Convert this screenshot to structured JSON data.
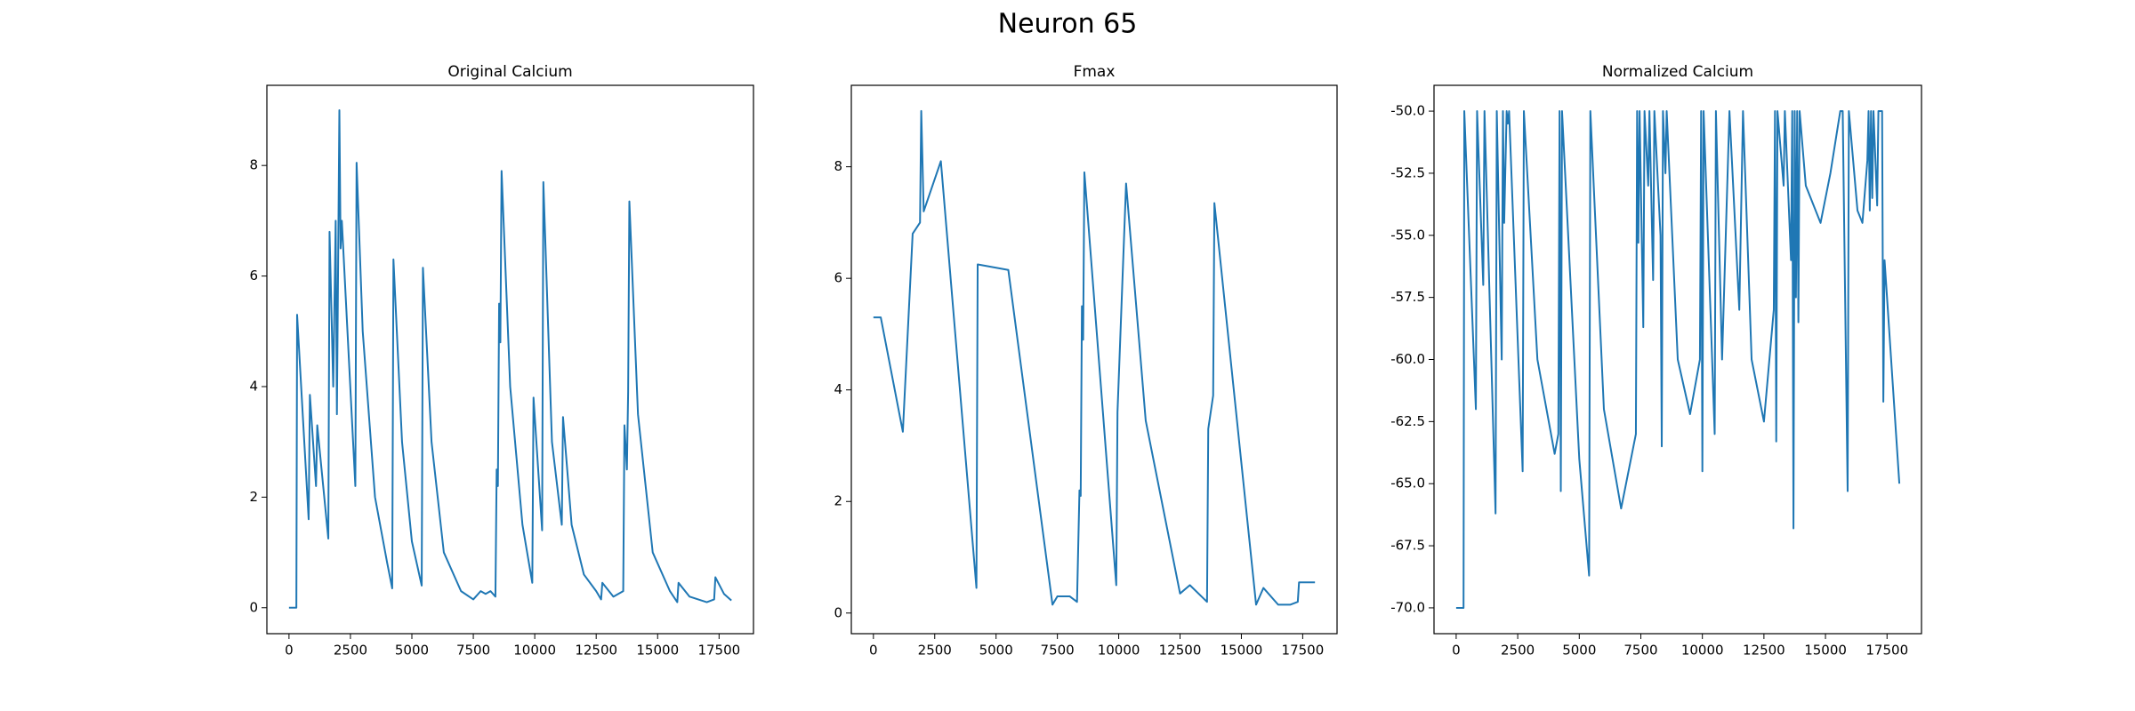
{
  "title": "Neuron 65",
  "chart_data": [
    {
      "type": "line",
      "title": "Original Calcium",
      "color": "#1f77b4",
      "xlim": [
        -900,
        18900
      ],
      "ylim": [
        -0.47,
        9.45
      ],
      "xticks": [
        0,
        2500,
        5000,
        7500,
        10000,
        12500,
        15000,
        17500
      ],
      "yticks": [
        0,
        2,
        4,
        6,
        8
      ],
      "x": [
        0,
        300,
        330,
        800,
        850,
        1100,
        1150,
        1600,
        1650,
        1800,
        1900,
        1950,
        2050,
        2100,
        2150,
        2700,
        2750,
        3000,
        3500,
        4000,
        4200,
        4250,
        4600,
        5000,
        5400,
        5450,
        5800,
        6300,
        7000,
        7500,
        7800,
        8000,
        8200,
        8400,
        8450,
        8500,
        8550,
        8600,
        8650,
        9000,
        9500,
        9900,
        9950,
        10300,
        10350,
        10700,
        11100,
        11150,
        11500,
        12000,
        12500,
        12700,
        12750,
        13200,
        13600,
        13650,
        13750,
        13800,
        13850,
        14200,
        14800,
        15500,
        15800,
        15850,
        16300,
        17000,
        17300,
        17350,
        17700,
        18000
      ],
      "values": [
        0,
        0,
        5.3,
        1.6,
        3.85,
        2.2,
        3.3,
        1.25,
        6.8,
        4,
        7,
        3.5,
        9,
        6.5,
        7,
        2.2,
        8.05,
        5,
        2,
        0.8,
        0.35,
        6.3,
        3,
        1.2,
        0.4,
        6.15,
        3,
        1,
        0.3,
        0.15,
        0.3,
        0.25,
        0.3,
        0.2,
        2.5,
        2.2,
        5.5,
        4.8,
        7.9,
        4,
        1.5,
        0.45,
        3.8,
        1.4,
        7.7,
        3,
        1.5,
        3.45,
        1.5,
        0.6,
        0.3,
        0.15,
        0.45,
        0.2,
        0.3,
        3.3,
        2.5,
        3.9,
        7.35,
        3.5,
        1,
        0.3,
        0.1,
        0.45,
        0.2,
        0.1,
        0.15,
        0.55,
        0.25,
        0.13
      ]
    },
    {
      "type": "line",
      "title": "Fmax",
      "color": "#1f77b4",
      "xlim": [
        -900,
        18900
      ],
      "ylim": [
        -0.37,
        9.46
      ],
      "xticks": [
        0,
        2500,
        5000,
        7500,
        10000,
        12500,
        15000,
        17500
      ],
      "yticks": [
        0,
        2,
        4,
        6,
        8
      ],
      "x": [
        0,
        300,
        1200,
        1600,
        1900,
        1950,
        2050,
        2750,
        4200,
        4250,
        5500,
        7300,
        7500,
        8000,
        8300,
        8400,
        8450,
        8500,
        8550,
        8600,
        9900,
        9950,
        10300,
        11100,
        12500,
        12900,
        13600,
        13650,
        13850,
        13900,
        15600,
        15900,
        16500,
        17000,
        17300,
        17350,
        18000
      ],
      "values": [
        5.3,
        5.3,
        3.25,
        6.8,
        7,
        9,
        7.2,
        8.1,
        0.45,
        6.25,
        6.15,
        0.15,
        0.3,
        0.3,
        0.2,
        2.2,
        2.1,
        5.5,
        4.9,
        7.9,
        0.5,
        3.6,
        7.7,
        3.45,
        0.35,
        0.5,
        0.2,
        3.3,
        3.9,
        7.35,
        0.15,
        0.45,
        0.15,
        0.15,
        0.2,
        0.55,
        0.55
      ]
    },
    {
      "type": "line",
      "title": "Normalized Calcium",
      "color": "#1f77b4",
      "xlim": [
        -900,
        18900
      ],
      "ylim": [
        -71.04,
        -48.96
      ],
      "xticks": [
        0,
        2500,
        5000,
        7500,
        10000,
        12500,
        15000,
        17500
      ],
      "yticks": [
        {
          "value": -70,
          "label": "-70.0"
        },
        {
          "value": -67.5,
          "label": "-67.5"
        },
        {
          "value": -65,
          "label": "-65.0"
        },
        {
          "value": -62.5,
          "label": "-62.5"
        },
        {
          "value": -60,
          "label": "-60.0"
        },
        {
          "value": -57.5,
          "label": "-57.5"
        },
        {
          "value": -55,
          "label": "-55.0"
        },
        {
          "value": -52.5,
          "label": "-52.5"
        },
        {
          "value": -50,
          "label": "-50.0"
        }
      ],
      "x": [
        0,
        300,
        330,
        800,
        850,
        1100,
        1150,
        1600,
        1650,
        1850,
        1900,
        1950,
        2050,
        2100,
        2150,
        2700,
        2750,
        3300,
        4000,
        4150,
        4200,
        4250,
        4300,
        5000,
        5400,
        5450,
        6000,
        6700,
        7300,
        7350,
        7400,
        7450,
        7600,
        7650,
        7800,
        7850,
        8000,
        8050,
        8300,
        8350,
        8400,
        8500,
        8550,
        9000,
        9500,
        9900,
        9950,
        10000,
        10050,
        10500,
        10550,
        10800,
        11100,
        11500,
        11650,
        12000,
        12500,
        12900,
        12950,
        13000,
        13050,
        13300,
        13350,
        13600,
        13650,
        13700,
        13750,
        13800,
        13850,
        13900,
        13950,
        14200,
        14800,
        15200,
        15600,
        15700,
        15900,
        15950,
        16300,
        16500,
        16700,
        16750,
        16800,
        16850,
        16900,
        16950,
        17100,
        17150,
        17300,
        17350,
        17400,
        18000
      ],
      "values": [
        -70,
        -70,
        -50,
        -62,
        -50,
        -57,
        -50,
        -66.2,
        -50,
        -60,
        -50,
        -54.5,
        -50,
        -50.5,
        -50,
        -64.5,
        -50,
        -60,
        -63.8,
        -63,
        -50,
        -65.3,
        -50,
        -64,
        -68.7,
        -50,
        -62,
        -66,
        -63,
        -50,
        -55.3,
        -50,
        -58.7,
        -50,
        -53,
        -50,
        -56.8,
        -50,
        -55,
        -63.5,
        -50,
        -52.5,
        -50,
        -60,
        -62.2,
        -60,
        -50,
        -64.5,
        -50,
        -63,
        -50,
        -60,
        -50,
        -58,
        -50,
        -60,
        -62.5,
        -58,
        -50,
        -63.3,
        -50,
        -53,
        -50,
        -56,
        -50,
        -66.8,
        -50,
        -57.5,
        -50,
        -58.5,
        -50,
        -53,
        -54.5,
        -52.5,
        -50,
        -50,
        -65.3,
        -50,
        -54,
        -54.5,
        -52,
        -50,
        -54,
        -50,
        -53.5,
        -50,
        -53.8,
        -50,
        -50,
        -61.7,
        -56,
        -65
      ]
    }
  ]
}
